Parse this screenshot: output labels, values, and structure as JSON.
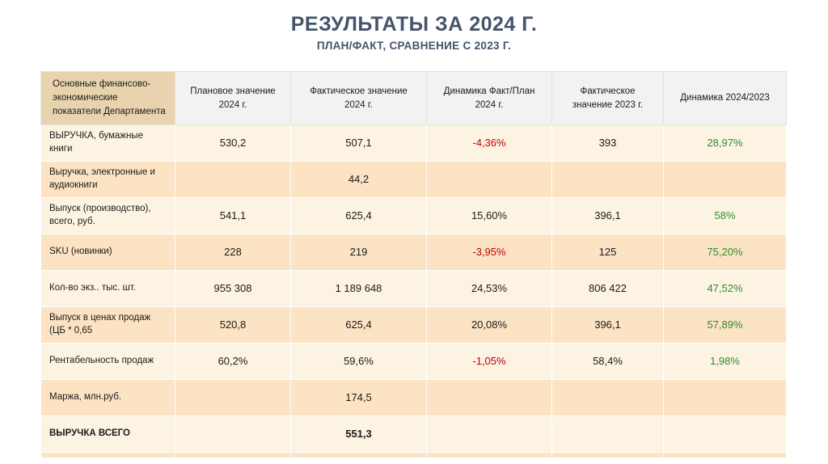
{
  "title": "РЕЗУЛЬТАТЫ ЗА 2024 Г.",
  "subtitle": "ПЛАН/ФАКТ, СРАВНЕНИЕ С 2023 Г.",
  "colors": {
    "title_text": "#44546a",
    "text": "#1a1a1a",
    "header_label_bg": "#e9d3ae",
    "header_bg": "#f2f2f2",
    "row_light": "#fdf3e3",
    "row_dark": "#fbe3c4",
    "negative": "#c00000",
    "positive": "#2e8b2e"
  },
  "table": {
    "label_header": "Основные финансово-экономические показатели Департамента",
    "column_headers": [
      "Плановое значение 2024 г.",
      "Фактическое значение 2024 г.",
      "Динамика Факт/План 2024 г.",
      "Фактическое значение 2023 г.",
      "Динамика 2024/2023"
    ],
    "rows": [
      {
        "label": "ВЫРУЧКА, бумажные книги",
        "bold": false,
        "values": [
          "530,2",
          "507,1",
          "-4,36%",
          "393",
          "28,97%"
        ],
        "styles": [
          "",
          "",
          "neg",
          "",
          "pos"
        ]
      },
      {
        "label": "Выручка, электронные и аудиокниги",
        "bold": false,
        "values": [
          "",
          "44,2",
          "",
          "",
          ""
        ],
        "styles": [
          "",
          "",
          "",
          "",
          ""
        ]
      },
      {
        "label": "Выпуск (производство), всего, руб.",
        "bold": false,
        "values": [
          "541,1",
          "625,4",
          "15,60%",
          "396,1",
          "58%"
        ],
        "styles": [
          "",
          "",
          "",
          "",
          "pos"
        ]
      },
      {
        "label": "SKU (новинки)",
        "bold": false,
        "values": [
          "228",
          "219",
          "-3,95%",
          "125",
          "75,20%"
        ],
        "styles": [
          "",
          "",
          "neg",
          "",
          "pos"
        ]
      },
      {
        "label": "Кол-во экз.. тыс. шт.",
        "bold": false,
        "values": [
          "955 308",
          "1 189 648",
          "24,53%",
          "806 422",
          "47,52%"
        ],
        "styles": [
          "",
          "",
          "",
          "",
          "pos"
        ]
      },
      {
        "label": "Выпуск в ценах продаж (ЦБ * 0,65",
        "bold": false,
        "values": [
          "520,8",
          "625,4",
          "20,08%",
          "396,1",
          "57,89%"
        ],
        "styles": [
          "",
          "",
          "",
          "",
          "pos"
        ]
      },
      {
        "label": "Рентабельность продаж",
        "bold": false,
        "values": [
          "60,2%",
          "59,6%",
          "-1,05%",
          "58,4%",
          "1,98%"
        ],
        "styles": [
          "",
          "",
          "neg",
          "",
          "pos"
        ]
      },
      {
        "label": "Маржа, млн.руб.",
        "bold": false,
        "values": [
          "",
          "174,5",
          "",
          "",
          ""
        ],
        "styles": [
          "",
          "",
          "",
          "",
          ""
        ]
      },
      {
        "label": "ВЫРУЧКА ВСЕГО",
        "bold": true,
        "values": [
          "",
          "551,3",
          "",
          "",
          ""
        ],
        "styles": [
          "",
          "bold",
          "",
          "",
          ""
        ]
      }
    ]
  }
}
